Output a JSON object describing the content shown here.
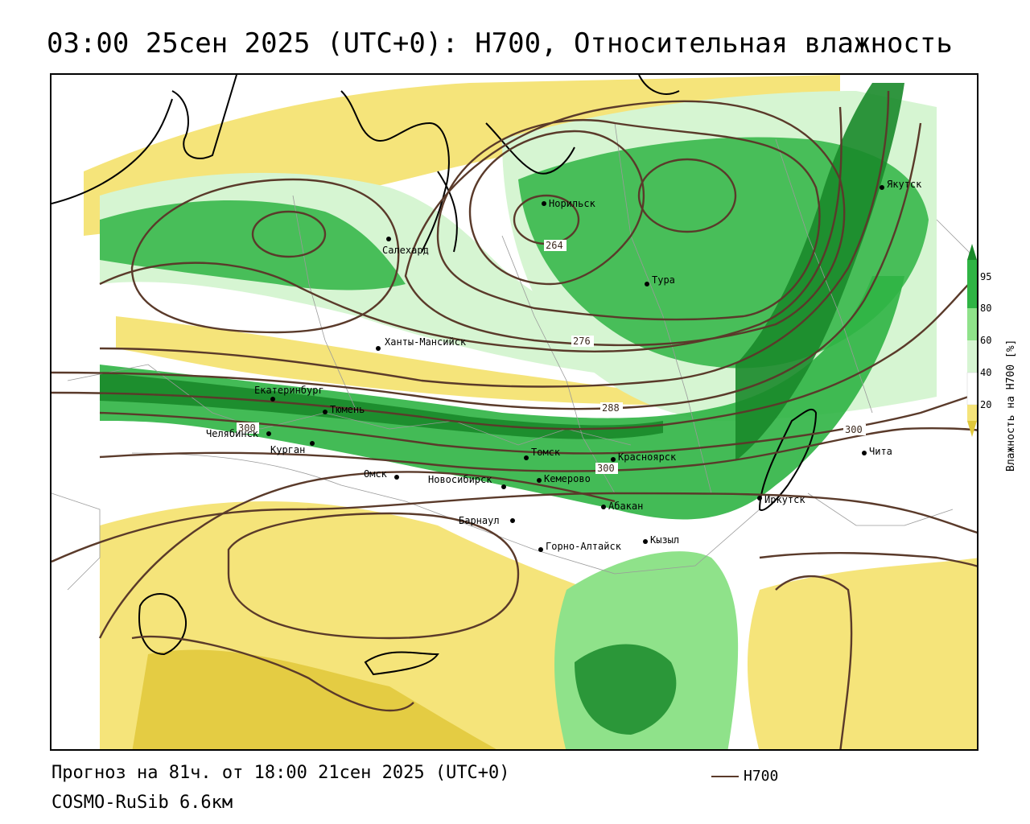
{
  "title": "03:00 25сен 2025 (UTC+0): H700, Относительная влажность",
  "footer": {
    "forecast": "Прогноз на 81ч. от 18:00 21сен 2025 (UTC+0)",
    "model": "COSMO-RuSib 6.6км",
    "contour_legend_label": "H700"
  },
  "legend": {
    "title": "Влажность на H700 [%]",
    "ticks": [
      "95",
      "80",
      "60",
      "40",
      "20"
    ],
    "colors": {
      "gt95": "#1a8a2a",
      "80_95": "#2fb444",
      "60_80": "#8fe28a",
      "40_60": "#d6f5d2",
      "20_40": "#ffffff",
      "0_20": "#f5e47a",
      "lt20": "#e0c83a"
    }
  },
  "contour_labels": [
    "264",
    "276",
    "288",
    "300",
    "300",
    "300"
  ],
  "cities": [
    {
      "name": "Норильск",
      "lon": 88.2,
      "lat": 69.3
    },
    {
      "name": "Якутск",
      "lon": 129.7,
      "lat": 62.0
    },
    {
      "name": "Салехард",
      "lon": 66.6,
      "lat": 66.5
    },
    {
      "name": "Тура",
      "lon": 100.2,
      "lat": 64.3
    },
    {
      "name": "Ханты-Мансийск",
      "lon": 69.0,
      "lat": 61.0
    },
    {
      "name": "Екатеринбург",
      "lon": 60.6,
      "lat": 56.8
    },
    {
      "name": "Тюмень",
      "lon": 65.5,
      "lat": 57.2
    },
    {
      "name": "Челябинск",
      "lon": 61.4,
      "lat": 55.2
    },
    {
      "name": "Курган",
      "lon": 65.3,
      "lat": 55.4
    },
    {
      "name": "Омск",
      "lon": 73.4,
      "lat": 55.0
    },
    {
      "name": "Томск",
      "lon": 85.0,
      "lat": 56.5
    },
    {
      "name": "Новосибирск",
      "lon": 82.9,
      "lat": 55.0
    },
    {
      "name": "Кемерово",
      "lon": 86.1,
      "lat": 55.4
    },
    {
      "name": "Красноярск",
      "lon": 92.9,
      "lat": 56.0
    },
    {
      "name": "Чита",
      "lon": 113.5,
      "lat": 52.0
    },
    {
      "name": "Барнаул",
      "lon": 83.8,
      "lat": 53.3
    },
    {
      "name": "Абакан",
      "lon": 91.4,
      "lat": 53.7
    },
    {
      "name": "Иркутск",
      "lon": 104.3,
      "lat": 52.3
    },
    {
      "name": "Кызыл",
      "lon": 94.4,
      "lat": 51.7
    },
    {
      "name": "Горно-Алтайск",
      "lon": 85.9,
      "lat": 51.96
    }
  ]
}
